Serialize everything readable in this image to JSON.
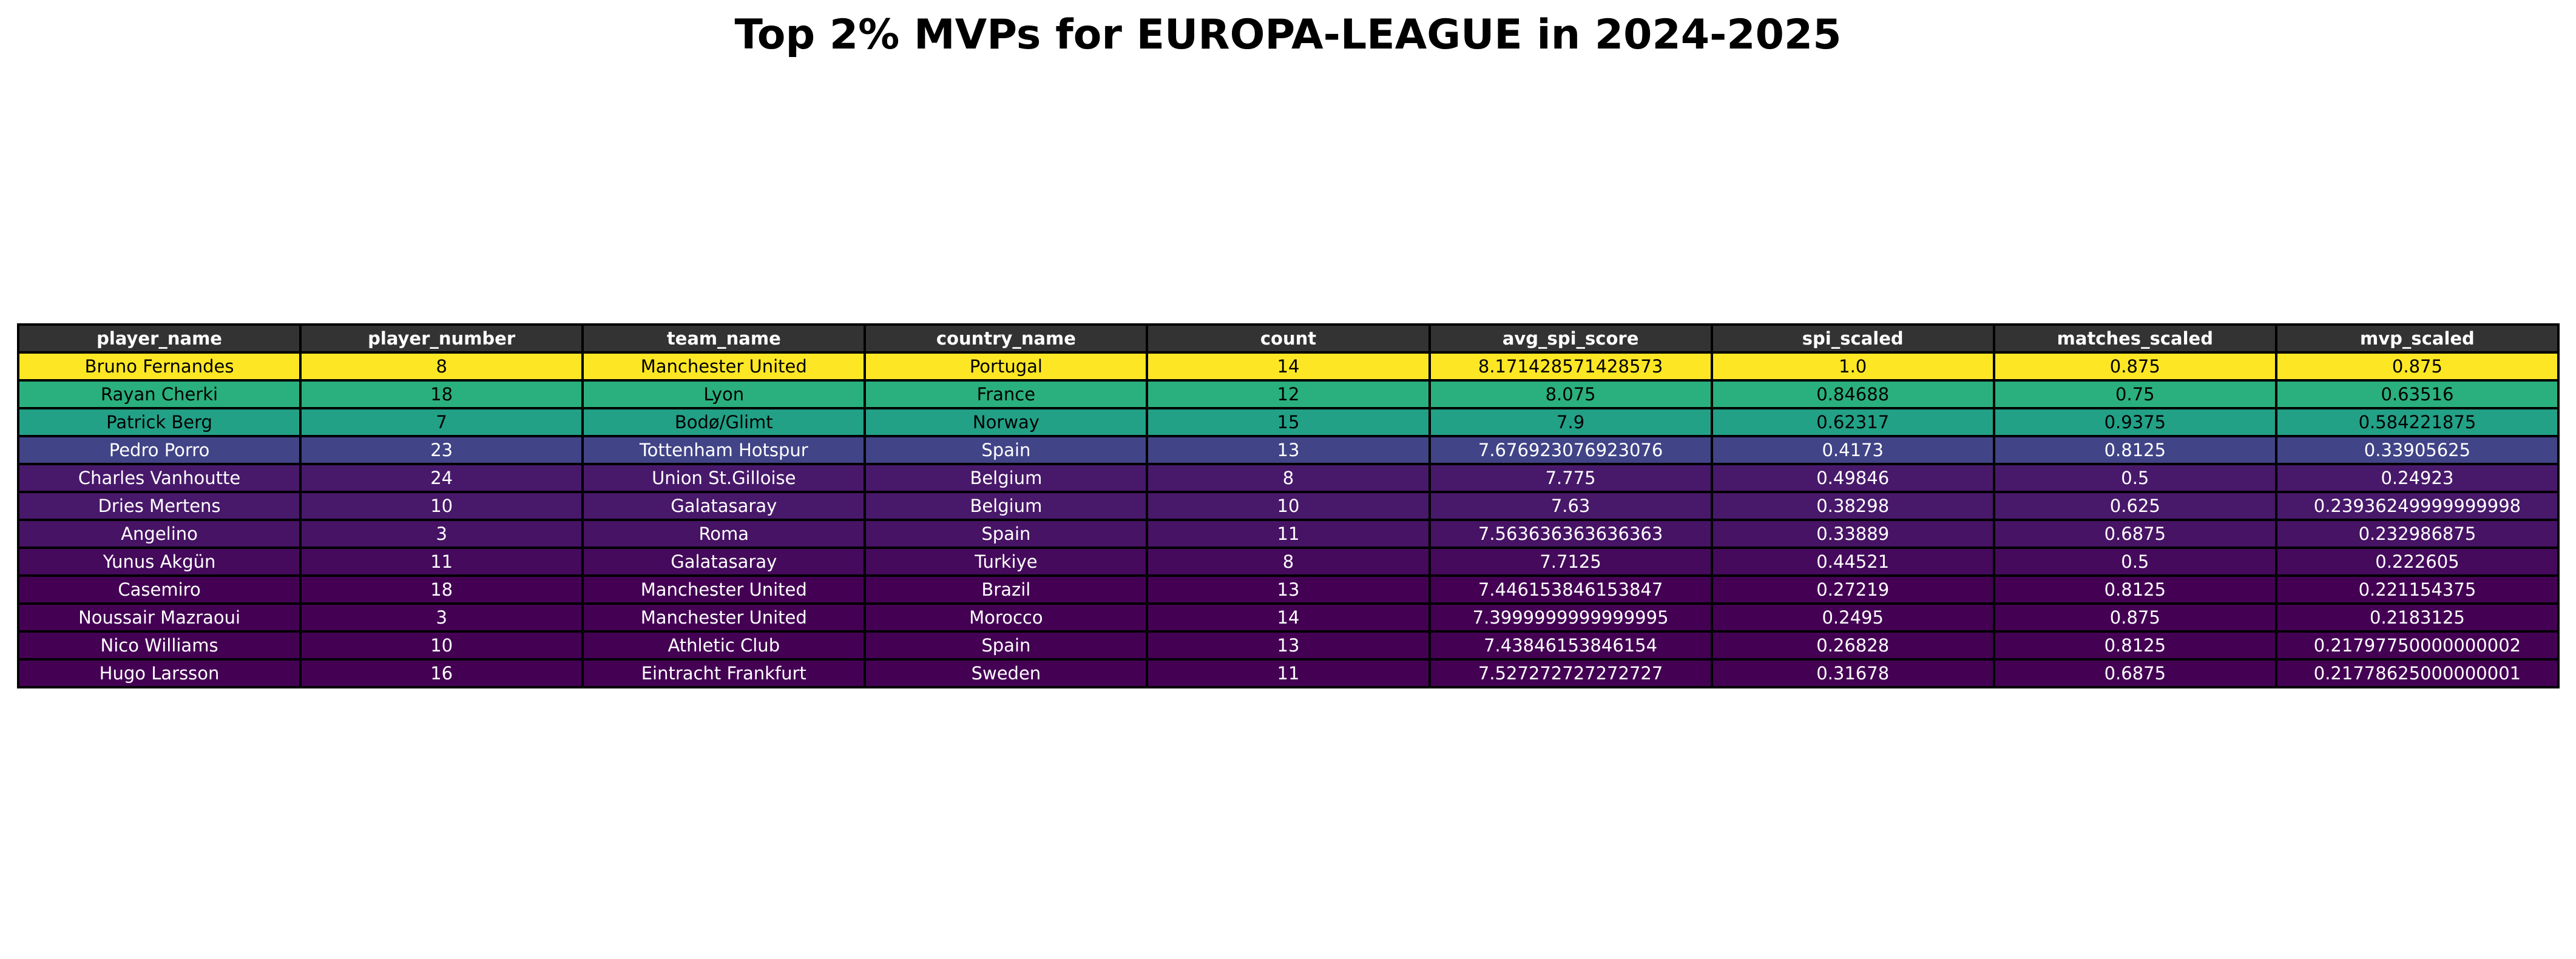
{
  "chart_data": {
    "type": "table",
    "title": "Top 2% MVPs for EUROPA-LEAGUE in 2024-2025",
    "columns": [
      "player_name",
      "player_number",
      "team_name",
      "country_name",
      "count",
      "avg_spi_score",
      "spi_scaled",
      "matches_scaled",
      "mvp_scaled"
    ],
    "colors": {
      "header_bg": "#333333",
      "header_text": "#ffffff",
      "row_backgrounds": [
        "#fde725",
        "#2ab07f",
        "#22a187",
        "#414487",
        "#48196b",
        "#48186a",
        "#471365",
        "#450a5c",
        "#440154",
        "#440154",
        "#440154",
        "#440154"
      ],
      "row_text": [
        "#000000",
        "#000000",
        "#000000",
        "#ffffff",
        "#ffffff",
        "#ffffff",
        "#ffffff",
        "#ffffff",
        "#ffffff",
        "#ffffff",
        "#ffffff",
        "#ffffff"
      ]
    },
    "rows": [
      [
        "Bruno Fernandes",
        "8",
        "Manchester United",
        "Portugal",
        "14",
        "8.171428571428573",
        "1.0",
        "0.875",
        "0.875"
      ],
      [
        "Rayan Cherki",
        "18",
        "Lyon",
        "France",
        "12",
        "8.075",
        "0.84688",
        "0.75",
        "0.63516"
      ],
      [
        "Patrick Berg",
        "7",
        "Bodø/Glimt",
        "Norway",
        "15",
        "7.9",
        "0.62317",
        "0.9375",
        "0.584221875"
      ],
      [
        "Pedro Porro",
        "23",
        "Tottenham Hotspur",
        "Spain",
        "13",
        "7.676923076923076",
        "0.4173",
        "0.8125",
        "0.33905625"
      ],
      [
        "Charles Vanhoutte",
        "24",
        "Union St.Gilloise",
        "Belgium",
        "8",
        "7.775",
        "0.49846",
        "0.5",
        "0.24923"
      ],
      [
        "Dries Mertens",
        "10",
        "Galatasaray",
        "Belgium",
        "10",
        "7.63",
        "0.38298",
        "0.625",
        "0.23936249999999998"
      ],
      [
        "Angelino",
        "3",
        "Roma",
        "Spain",
        "11",
        "7.563636363636363",
        "0.33889",
        "0.6875",
        "0.232986875"
      ],
      [
        "Yunus Akgün",
        "11",
        "Galatasaray",
        "Turkiye",
        "8",
        "7.7125",
        "0.44521",
        "0.5",
        "0.222605"
      ],
      [
        "Casemiro",
        "18",
        "Manchester United",
        "Brazil",
        "13",
        "7.446153846153847",
        "0.27219",
        "0.8125",
        "0.221154375"
      ],
      [
        "Noussair Mazraoui",
        "3",
        "Manchester United",
        "Morocco",
        "14",
        "7.3999999999999995",
        "0.2495",
        "0.875",
        "0.2183125"
      ],
      [
        "Nico Williams",
        "10",
        "Athletic Club",
        "Spain",
        "13",
        "7.43846153846154",
        "0.26828",
        "0.8125",
        "0.21797750000000002"
      ],
      [
        "Hugo Larsson",
        "16",
        "Eintracht Frankfurt",
        "Sweden",
        "11",
        "7.527272727272727",
        "0.31678",
        "0.6875",
        "0.21778625000000001"
      ]
    ]
  }
}
